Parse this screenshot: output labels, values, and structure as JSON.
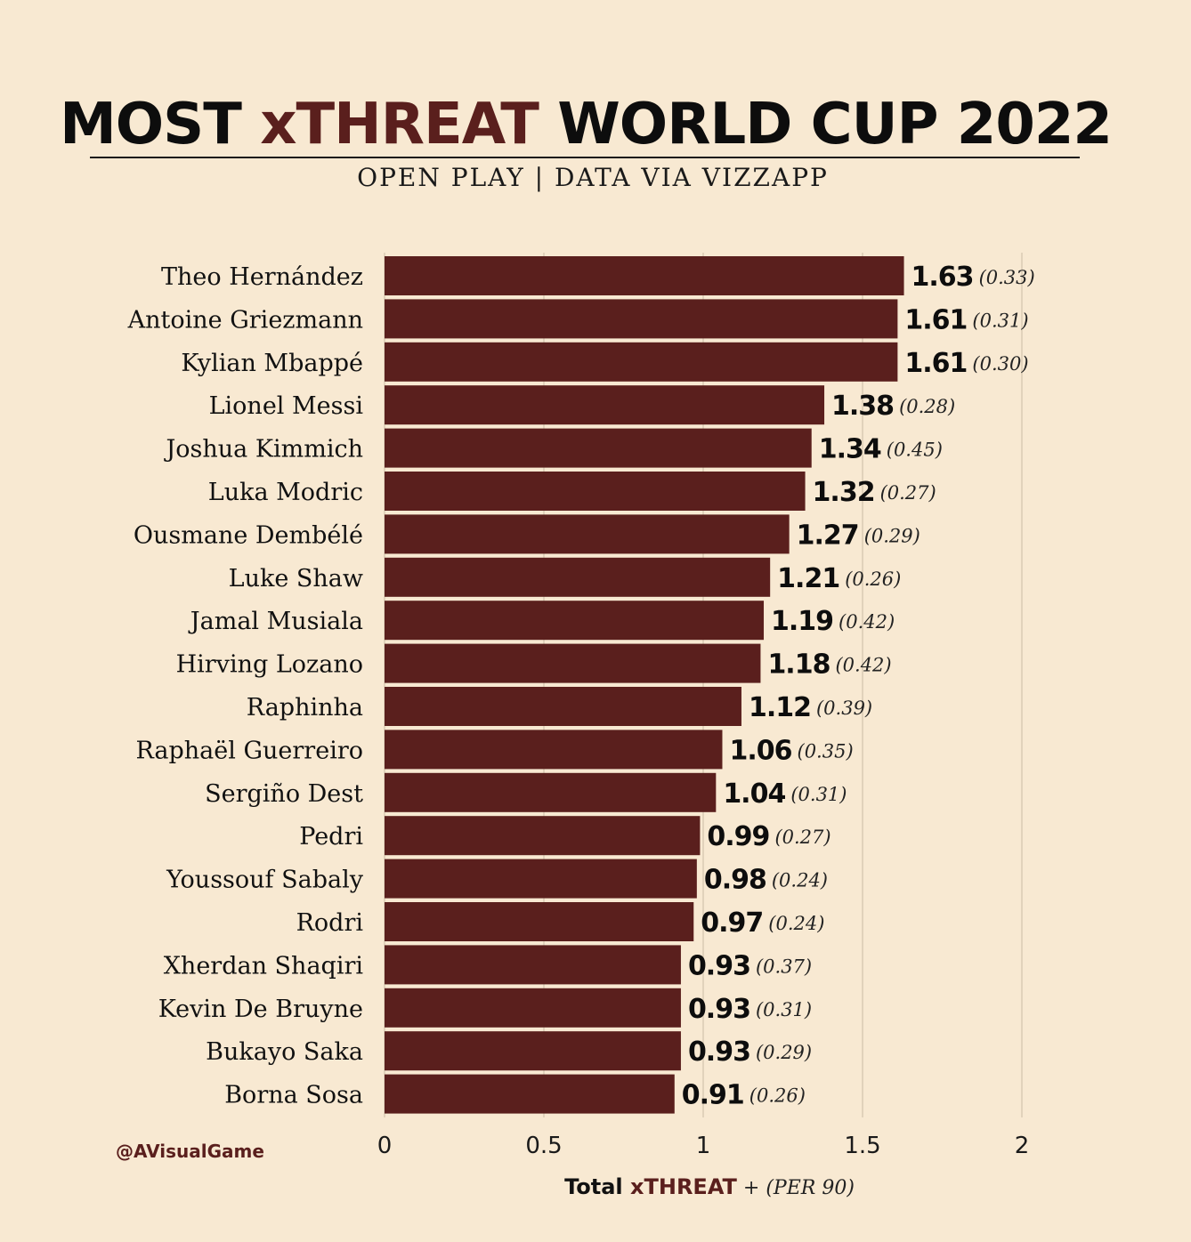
{
  "title": {
    "part1": "MOST ",
    "part2": "xTHREAT",
    "part3": " WORLD CUP 2022"
  },
  "subtitle": "OPEN PLAY | DATA VIA VIZZAPP",
  "credit": "@AVisualGame",
  "xaxis_label": {
    "total": "Total ",
    "xthreat": "xTHREAT",
    "per": " + (PER 90)"
  },
  "colors": {
    "background": "#f8e9d2",
    "bar": "#5a1f1d",
    "accent": "#5a1f1d",
    "text": "#111111",
    "grid": "#d9cbb3"
  },
  "chart_data": {
    "type": "bar",
    "orientation": "horizontal",
    "title": "MOST xTHREAT WORLD CUP 2022",
    "subtitle": "OPEN PLAY | DATA VIA VIZZAPP",
    "xlabel": "Total xTHREAT + (PER 90)",
    "ylabel": "",
    "xlim": [
      0,
      2
    ],
    "xticks": [
      0,
      0.5,
      1,
      1.5,
      2
    ],
    "xtick_labels": [
      "0",
      "0.5",
      "1",
      "1.5",
      "2"
    ],
    "grid": "vertical",
    "categories": [
      "Theo Hernández",
      "Antoine Griezmann",
      "Kylian Mbappé",
      "Lionel Messi",
      "Joshua Kimmich",
      "Luka Modric",
      "Ousmane Dembélé",
      "Luke Shaw",
      "Jamal Musiala",
      "Hirving Lozano",
      "Raphinha",
      "Raphaël Guerreiro",
      "Sergiño Dest",
      "Pedri",
      "Youssouf Sabaly",
      "Rodri",
      "Xherdan Shaqiri",
      "Kevin De Bruyne",
      "Bukayo Saka",
      "Borna Sosa"
    ],
    "series": [
      {
        "name": "Total xThreat",
        "values": [
          1.63,
          1.61,
          1.61,
          1.38,
          1.34,
          1.32,
          1.27,
          1.21,
          1.19,
          1.18,
          1.12,
          1.06,
          1.04,
          0.99,
          0.98,
          0.97,
          0.93,
          0.93,
          0.93,
          0.91
        ],
        "labels": [
          "1.63",
          "1.61",
          "1.61",
          "1.38",
          "1.34",
          "1.32",
          "1.27",
          "1.21",
          "1.19",
          "1.18",
          "1.12",
          "1.06",
          "1.04",
          "0.99",
          "0.98",
          "0.97",
          "0.93",
          "0.93",
          "0.93",
          "0.91"
        ]
      },
      {
        "name": "xThreat per 90",
        "values": [
          0.33,
          0.31,
          0.3,
          0.28,
          0.45,
          0.27,
          0.29,
          0.26,
          0.42,
          0.42,
          0.39,
          0.35,
          0.31,
          0.27,
          0.24,
          0.24,
          0.37,
          0.31,
          0.29,
          0.26
        ],
        "labels": [
          "(0.33)",
          "(0.31)",
          "(0.30)",
          "(0.28)",
          "(0.45)",
          "(0.27)",
          "(0.29)",
          "(0.26)",
          "(0.42)",
          "(0.42)",
          "(0.39)",
          "(0.35)",
          "(0.31)",
          "(0.27)",
          "(0.24)",
          "(0.24)",
          "(0.37)",
          "(0.31)",
          "(0.29)",
          "(0.26)"
        ]
      }
    ]
  }
}
